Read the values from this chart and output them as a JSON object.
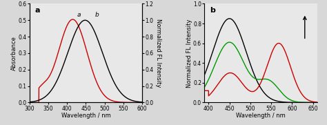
{
  "panel_a": {
    "label": "a",
    "xlim": [
      300,
      600
    ],
    "ylim_left": [
      0.0,
      0.6
    ],
    "ylim_right": [
      0.0,
      1.2
    ],
    "xticks": [
      300,
      350,
      400,
      450,
      500,
      550,
      600
    ],
    "yticks_left": [
      0.0,
      0.1,
      0.2,
      0.3,
      0.4,
      0.5,
      0.6
    ],
    "yticks_right": [
      0.0,
      0.2,
      0.4,
      0.6,
      0.8,
      1.0,
      1.2
    ],
    "ylabel_left": "Absorbance",
    "ylabel_right": "Normalized FL Intensity",
    "xlabel": "Wavelength / nm",
    "curve_a_color": "#cc0000",
    "curve_b_color": "#000000",
    "bg_color": "#e8e8e8"
  },
  "panel_b": {
    "label": "b",
    "xlim": [
      390,
      660
    ],
    "ylim": [
      0.0,
      1.0
    ],
    "xticks": [
      400,
      450,
      500,
      550,
      600,
      650
    ],
    "yticks": [
      0.0,
      0.2,
      0.4,
      0.6,
      0.8,
      1.0
    ],
    "ylabel": "Normalized FL Intensity",
    "xlabel": "Wavelength / nm",
    "curve_black_color": "#000000",
    "curve_green_color": "#009900",
    "curve_red_color": "#cc0000",
    "bg_color": "#e8e8e8"
  },
  "fig_bg": "#d8d8d8"
}
